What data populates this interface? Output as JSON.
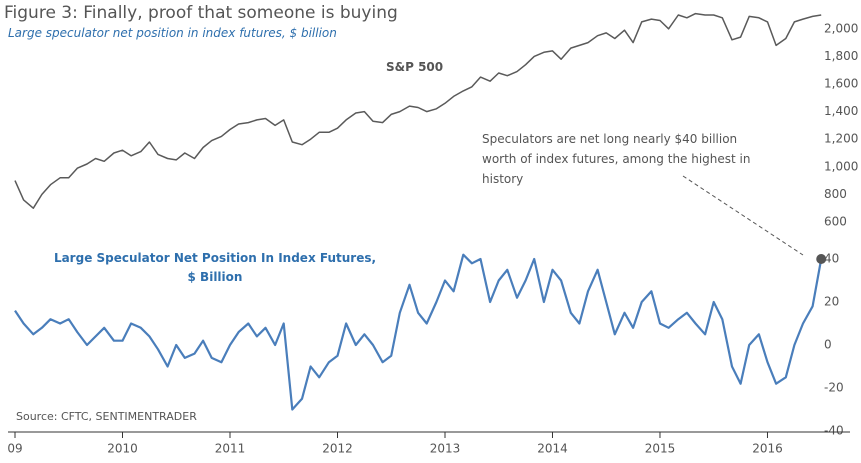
{
  "chart_data": [
    {
      "type": "line",
      "title": "Figure 3: Finally, proof that someone is buying",
      "subtitle": "Large speculator net position in index futures, $ billion",
      "x": [
        2009,
        2009.08,
        2009.17,
        2009.25,
        2009.33,
        2009.42,
        2009.5,
        2009.58,
        2009.67,
        2009.75,
        2009.83,
        2009.92,
        2010,
        2010.08,
        2010.17,
        2010.25,
        2010.33,
        2010.42,
        2010.5,
        2010.58,
        2010.67,
        2010.75,
        2010.83,
        2010.92,
        2011,
        2011.08,
        2011.17,
        2011.25,
        2011.33,
        2011.42,
        2011.5,
        2011.58,
        2011.67,
        2011.75,
        2011.83,
        2011.92,
        2012,
        2012.08,
        2012.17,
        2012.25,
        2012.33,
        2012.42,
        2012.5,
        2012.58,
        2012.67,
        2012.75,
        2012.83,
        2012.92,
        2013,
        2013.08,
        2013.17,
        2013.25,
        2013.33,
        2013.42,
        2013.5,
        2013.58,
        2013.67,
        2013.75,
        2013.83,
        2013.92,
        2014,
        2014.08,
        2014.17,
        2014.25,
        2014.33,
        2014.42,
        2014.5,
        2014.58,
        2014.67,
        2014.75,
        2014.83,
        2014.92,
        2015,
        2015.08,
        2015.17,
        2015.25,
        2015.33,
        2015.42,
        2015.5,
        2015.58,
        2015.67,
        2015.75,
        2015.83,
        2015.92,
        2016,
        2016.08,
        2016.17,
        2016.25,
        2016.33,
        2016.42,
        2016.5
      ],
      "series": [
        {
          "name": "S&P 500",
          "color": "#5a5a5a",
          "values": [
            900,
            760,
            700,
            800,
            870,
            920,
            920,
            990,
            1020,
            1060,
            1040,
            1100,
            1120,
            1080,
            1110,
            1180,
            1090,
            1060,
            1050,
            1100,
            1060,
            1140,
            1190,
            1220,
            1270,
            1310,
            1320,
            1340,
            1350,
            1300,
            1340,
            1180,
            1160,
            1200,
            1250,
            1250,
            1280,
            1340,
            1390,
            1400,
            1330,
            1320,
            1380,
            1400,
            1440,
            1430,
            1400,
            1420,
            1460,
            1510,
            1550,
            1580,
            1650,
            1620,
            1680,
            1660,
            1690,
            1740,
            1800,
            1830,
            1840,
            1780,
            1860,
            1880,
            1900,
            1950,
            1970,
            1930,
            1990,
            1900,
            2050,
            2070,
            2060,
            2000,
            2100,
            2080,
            2110,
            2100,
            2100,
            2080,
            1920,
            1940,
            2090,
            2080,
            2050,
            1880,
            1930,
            2050,
            2070,
            2090,
            2100
          ]
        }
      ],
      "xlim": [
        2009,
        2016.55
      ],
      "ylim": [
        600,
        2100
      ],
      "yticks": [
        600,
        800,
        {
          "value": 1000,
          "label": "1,000"
        },
        {
          "value": 1200,
          "label": "1,200"
        },
        {
          "value": 1400,
          "label": "1,400"
        },
        {
          "value": 1600,
          "label": "1,600"
        },
        {
          "value": 1800,
          "label": "1,800"
        },
        {
          "value": 2000,
          "label": "2,000"
        }
      ]
    },
    {
      "type": "line",
      "source": "Source: CFTC, SENTIMENTRADER",
      "annotation": "Speculators are net long nearly $40 billion worth of index futures, among the highest in history",
      "x": [
        2009,
        2009.08,
        2009.17,
        2009.25,
        2009.33,
        2009.42,
        2009.5,
        2009.58,
        2009.67,
        2009.75,
        2009.83,
        2009.92,
        2010,
        2010.08,
        2010.17,
        2010.25,
        2010.33,
        2010.42,
        2010.5,
        2010.58,
        2010.67,
        2010.75,
        2010.83,
        2010.92,
        2011,
        2011.08,
        2011.17,
        2011.25,
        2011.33,
        2011.42,
        2011.5,
        2011.58,
        2011.67,
        2011.75,
        2011.83,
        2011.92,
        2012,
        2012.08,
        2012.17,
        2012.25,
        2012.33,
        2012.42,
        2012.5,
        2012.58,
        2012.67,
        2012.75,
        2012.83,
        2012.92,
        2013,
        2013.08,
        2013.17,
        2013.25,
        2013.33,
        2013.42,
        2013.5,
        2013.58,
        2013.67,
        2013.75,
        2013.83,
        2013.92,
        2014,
        2014.08,
        2014.17,
        2014.25,
        2014.33,
        2014.42,
        2014.5,
        2014.58,
        2014.67,
        2014.75,
        2014.83,
        2014.92,
        2015,
        2015.08,
        2015.17,
        2015.25,
        2015.33,
        2015.42,
        2015.5,
        2015.58,
        2015.67,
        2015.75,
        2015.83,
        2015.92,
        2016,
        2016.08,
        2016.17,
        2016.25,
        2016.33,
        2016.42,
        2016.5
      ],
      "series": [
        {
          "name": "Large Speculator Net Position In Index Futures, $ Billion",
          "color": "#4a7ebb",
          "values": [
            16,
            10,
            5,
            8,
            12,
            10,
            12,
            6,
            0,
            4,
            8,
            2,
            2,
            10,
            8,
            4,
            -2,
            -10,
            0,
            -6,
            -4,
            2,
            -6,
            -8,
            0,
            6,
            10,
            4,
            8,
            0,
            10,
            -30,
            -25,
            -10,
            -15,
            -8,
            -5,
            10,
            0,
            5,
            0,
            -8,
            -5,
            15,
            28,
            15,
            10,
            20,
            30,
            25,
            42,
            38,
            40,
            20,
            30,
            35,
            22,
            30,
            40,
            20,
            35,
            30,
            15,
            10,
            25,
            35,
            20,
            5,
            15,
            8,
            20,
            25,
            10,
            8,
            12,
            15,
            10,
            5,
            20,
            12,
            -10,
            -18,
            0,
            5,
            -8,
            -18,
            -15,
            0,
            10,
            18,
            40
          ]
        }
      ],
      "xlim": [
        2009,
        2016.55
      ],
      "ylim": [
        -40,
        40
      ],
      "xticks": [
        {
          "value": 2009,
          "label": "09"
        },
        2010,
        2011,
        2012,
        2013,
        2014,
        2015,
        2016
      ],
      "yticks": [
        -40,
        -20,
        0,
        20,
        40
      ]
    }
  ]
}
